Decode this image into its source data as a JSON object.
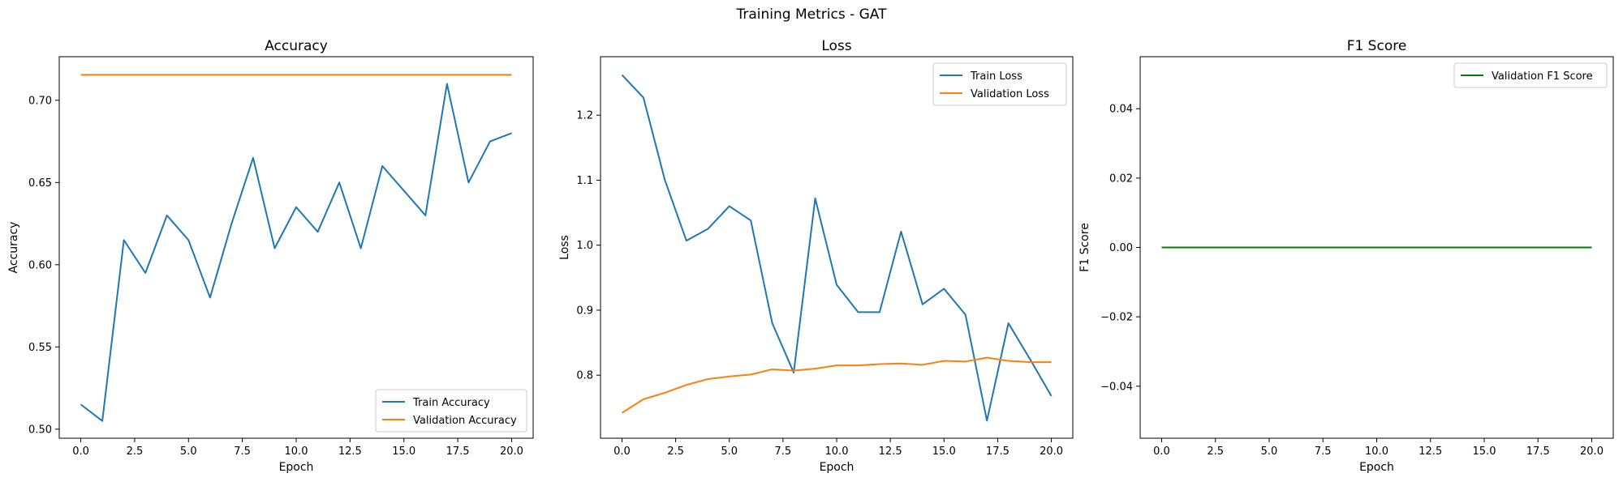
{
  "figure": {
    "title": "Training Metrics - GAT"
  },
  "chart_data": [
    {
      "type": "line",
      "title": "Accuracy",
      "xlabel": "Epoch",
      "ylabel": "Accuracy",
      "xlim": [
        -1,
        21
      ],
      "ylim": [
        0.4945,
        0.7265
      ],
      "xticks": [
        0,
        2.5,
        5,
        7.5,
        10,
        12.5,
        15,
        17.5,
        20
      ],
      "xtick_labels": [
        "0.0",
        "2.5",
        "5.0",
        "7.5",
        "10.0",
        "12.5",
        "15.0",
        "17.5",
        "20.0"
      ],
      "yticks": [
        0.5,
        0.55,
        0.6,
        0.65,
        0.7
      ],
      "ytick_labels": [
        "0.50",
        "0.55",
        "0.60",
        "0.65",
        "0.70"
      ],
      "legend_position": "lower right",
      "grid": false,
      "x": [
        0,
        1,
        2,
        3,
        4,
        5,
        6,
        7,
        8,
        9,
        10,
        11,
        12,
        13,
        14,
        15,
        16,
        17,
        18,
        19,
        20
      ],
      "series": [
        {
          "name": "Train Accuracy",
          "color": "#1f77b4",
          "values": [
            0.515,
            0.505,
            0.615,
            0.595,
            0.63,
            0.615,
            0.58,
            0.625,
            0.665,
            0.61,
            0.635,
            0.62,
            0.65,
            0.61,
            0.66,
            0.645,
            0.63,
            0.71,
            0.65,
            0.675,
            0.68
          ]
        },
        {
          "name": "Validation Accuracy",
          "color": "#ff7f0e",
          "values": [
            0.7155,
            0.7155,
            0.7155,
            0.7155,
            0.7155,
            0.7155,
            0.7155,
            0.7155,
            0.7155,
            0.7155,
            0.7155,
            0.7155,
            0.7155,
            0.7155,
            0.7155,
            0.7155,
            0.7155,
            0.7155,
            0.7155,
            0.7155,
            0.7155
          ]
        }
      ]
    },
    {
      "type": "line",
      "title": "Loss",
      "xlabel": "Epoch",
      "ylabel": "Loss",
      "xlim": [
        -1,
        21
      ],
      "ylim": [
        0.703,
        1.29
      ],
      "xticks": [
        0,
        2.5,
        5,
        7.5,
        10,
        12.5,
        15,
        17.5,
        20
      ],
      "xtick_labels": [
        "0.0",
        "2.5",
        "5.0",
        "7.5",
        "10.0",
        "12.5",
        "15.0",
        "17.5",
        "20.0"
      ],
      "yticks": [
        0.8,
        0.9,
        1.0,
        1.1,
        1.2
      ],
      "ytick_labels": [
        "0.8",
        "0.9",
        "1.0",
        "1.1",
        "1.2"
      ],
      "legend_position": "upper right",
      "grid": false,
      "x": [
        0,
        1,
        2,
        3,
        4,
        5,
        6,
        7,
        8,
        9,
        10,
        11,
        12,
        13,
        14,
        15,
        16,
        17,
        18,
        19,
        20
      ],
      "series": [
        {
          "name": "Train Loss",
          "color": "#1f77b4",
          "values": [
            1.262,
            1.227,
            1.1,
            1.007,
            1.025,
            1.06,
            1.038,
            0.88,
            0.804,
            1.072,
            0.939,
            0.897,
            0.897,
            1.021,
            0.909,
            0.933,
            0.893,
            0.73,
            0.88,
            0.825,
            0.768
          ]
        },
        {
          "name": "Validation Loss",
          "color": "#ff7f0e",
          "values": [
            0.742,
            0.763,
            0.773,
            0.785,
            0.794,
            0.798,
            0.801,
            0.809,
            0.807,
            0.81,
            0.815,
            0.815,
            0.817,
            0.818,
            0.816,
            0.822,
            0.821,
            0.827,
            0.822,
            0.82,
            0.82
          ]
        }
      ]
    },
    {
      "type": "line",
      "title": "F1 Score",
      "xlabel": "Epoch",
      "ylabel": "F1 Score",
      "xlim": [
        -1,
        21
      ],
      "ylim": [
        -0.055,
        0.055
      ],
      "xticks": [
        0,
        2.5,
        5,
        7.5,
        10,
        12.5,
        15,
        17.5,
        20
      ],
      "xtick_labels": [
        "0.0",
        "2.5",
        "5.0",
        "7.5",
        "10.0",
        "12.5",
        "15.0",
        "17.5",
        "20.0"
      ],
      "yticks": [
        -0.04,
        -0.02,
        0.0,
        0.02,
        0.04
      ],
      "ytick_labels": [
        "−0.04",
        "−0.02",
        "0.00",
        "0.02",
        "0.04"
      ],
      "legend_position": "upper right",
      "grid": false,
      "x": [
        0,
        1,
        2,
        3,
        4,
        5,
        6,
        7,
        8,
        9,
        10,
        11,
        12,
        13,
        14,
        15,
        16,
        17,
        18,
        19,
        20
      ],
      "series": [
        {
          "name": "Validation F1 Score",
          "color": "#008000",
          "values": [
            0,
            0,
            0,
            0,
            0,
            0,
            0,
            0,
            0,
            0,
            0,
            0,
            0,
            0,
            0,
            0,
            0,
            0,
            0,
            0,
            0
          ]
        }
      ]
    }
  ]
}
